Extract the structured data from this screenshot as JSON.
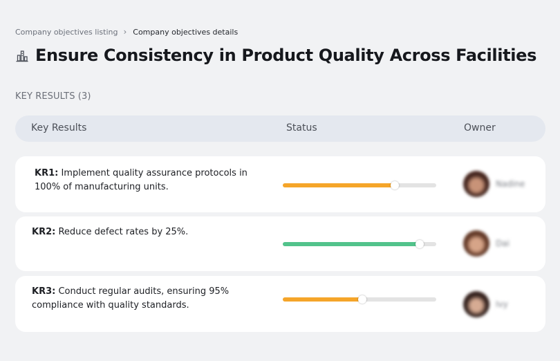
{
  "breadcrumb": {
    "parent": "Company objectives listing",
    "separator": "›",
    "current": "Company objectives details"
  },
  "title_icon": "building-chart-icon",
  "page_title": "Ensure Consistency in Product Quality Across Facilities",
  "section_heading": "KEY RESULTS (3)",
  "table": {
    "headers": {
      "key_results": "Key Results",
      "status": "Status",
      "owner": "Owner"
    },
    "rows": [
      {
        "id": "KR1:",
        "text": " Implement quality assurance protocols in 100% of manufacturing units.",
        "progress": 0.73,
        "progress_color": "#f5a52a",
        "owner_name": "Nadine",
        "avatar_icon": "person-avatar-icon"
      },
      {
        "id": "KR2:",
        "text": " Reduce defect rates by 25%.",
        "progress": 0.89,
        "progress_color": "#52c38b",
        "owner_name": "Dai",
        "avatar_icon": "person-avatar-icon"
      },
      {
        "id": "KR3:",
        "text": " Conduct regular audits, ensuring 95% compliance with quality standards.",
        "progress": 0.52,
        "progress_color": "#f5a52a",
        "owner_name": "Ivy",
        "avatar_icon": "person-avatar-icon"
      }
    ]
  }
}
